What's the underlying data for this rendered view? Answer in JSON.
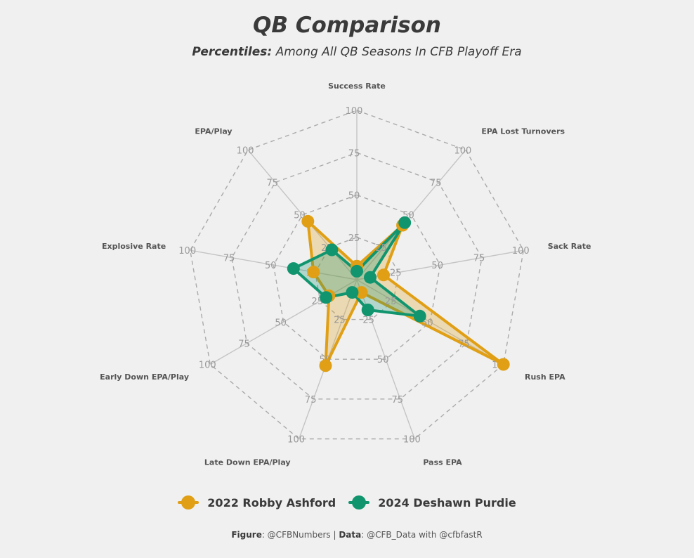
{
  "title": "QB Comparison",
  "subtitle": {
    "bold": "Percentiles:",
    "rest": " Among All QB Seasons In CFB Playoff Era"
  },
  "chart_data": {
    "type": "radar",
    "axes": [
      "Success Rate",
      "EPA Lost Turnovers",
      "Sack Rate",
      "Rush EPA",
      "Pass EPA",
      "Late Down EPA/Play",
      "Early Down EPA/Play",
      "Explosive Rate",
      "EPA/Play"
    ],
    "rlim": [
      0,
      100
    ],
    "ticks": [
      25,
      50,
      75,
      100
    ],
    "tick_labels": [
      "25",
      "50",
      "75",
      "100"
    ],
    "grid": "dashed",
    "series": [
      {
        "name": "2022 Robby Ashford",
        "color": "#E09F14",
        "values": [
          8,
          42,
          16,
          100,
          8,
          54,
          19,
          26,
          45
        ]
      },
      {
        "name": "2024 Deshawn Purdie",
        "color": "#11956E",
        "values": [
          5,
          44,
          8,
          43,
          19,
          8,
          21,
          38,
          23
        ]
      }
    ]
  },
  "legend": [
    {
      "label": "2022 Robby Ashford",
      "color": "#E09F14"
    },
    {
      "label": "2024 Deshawn Purdie",
      "color": "#11956E"
    }
  ],
  "caption": {
    "figure_label": "Figure",
    "figure_value": ": @CFBNumbers | ",
    "data_label": "Data",
    "data_value": ": @CFB_Data with @cfbfastR"
  }
}
